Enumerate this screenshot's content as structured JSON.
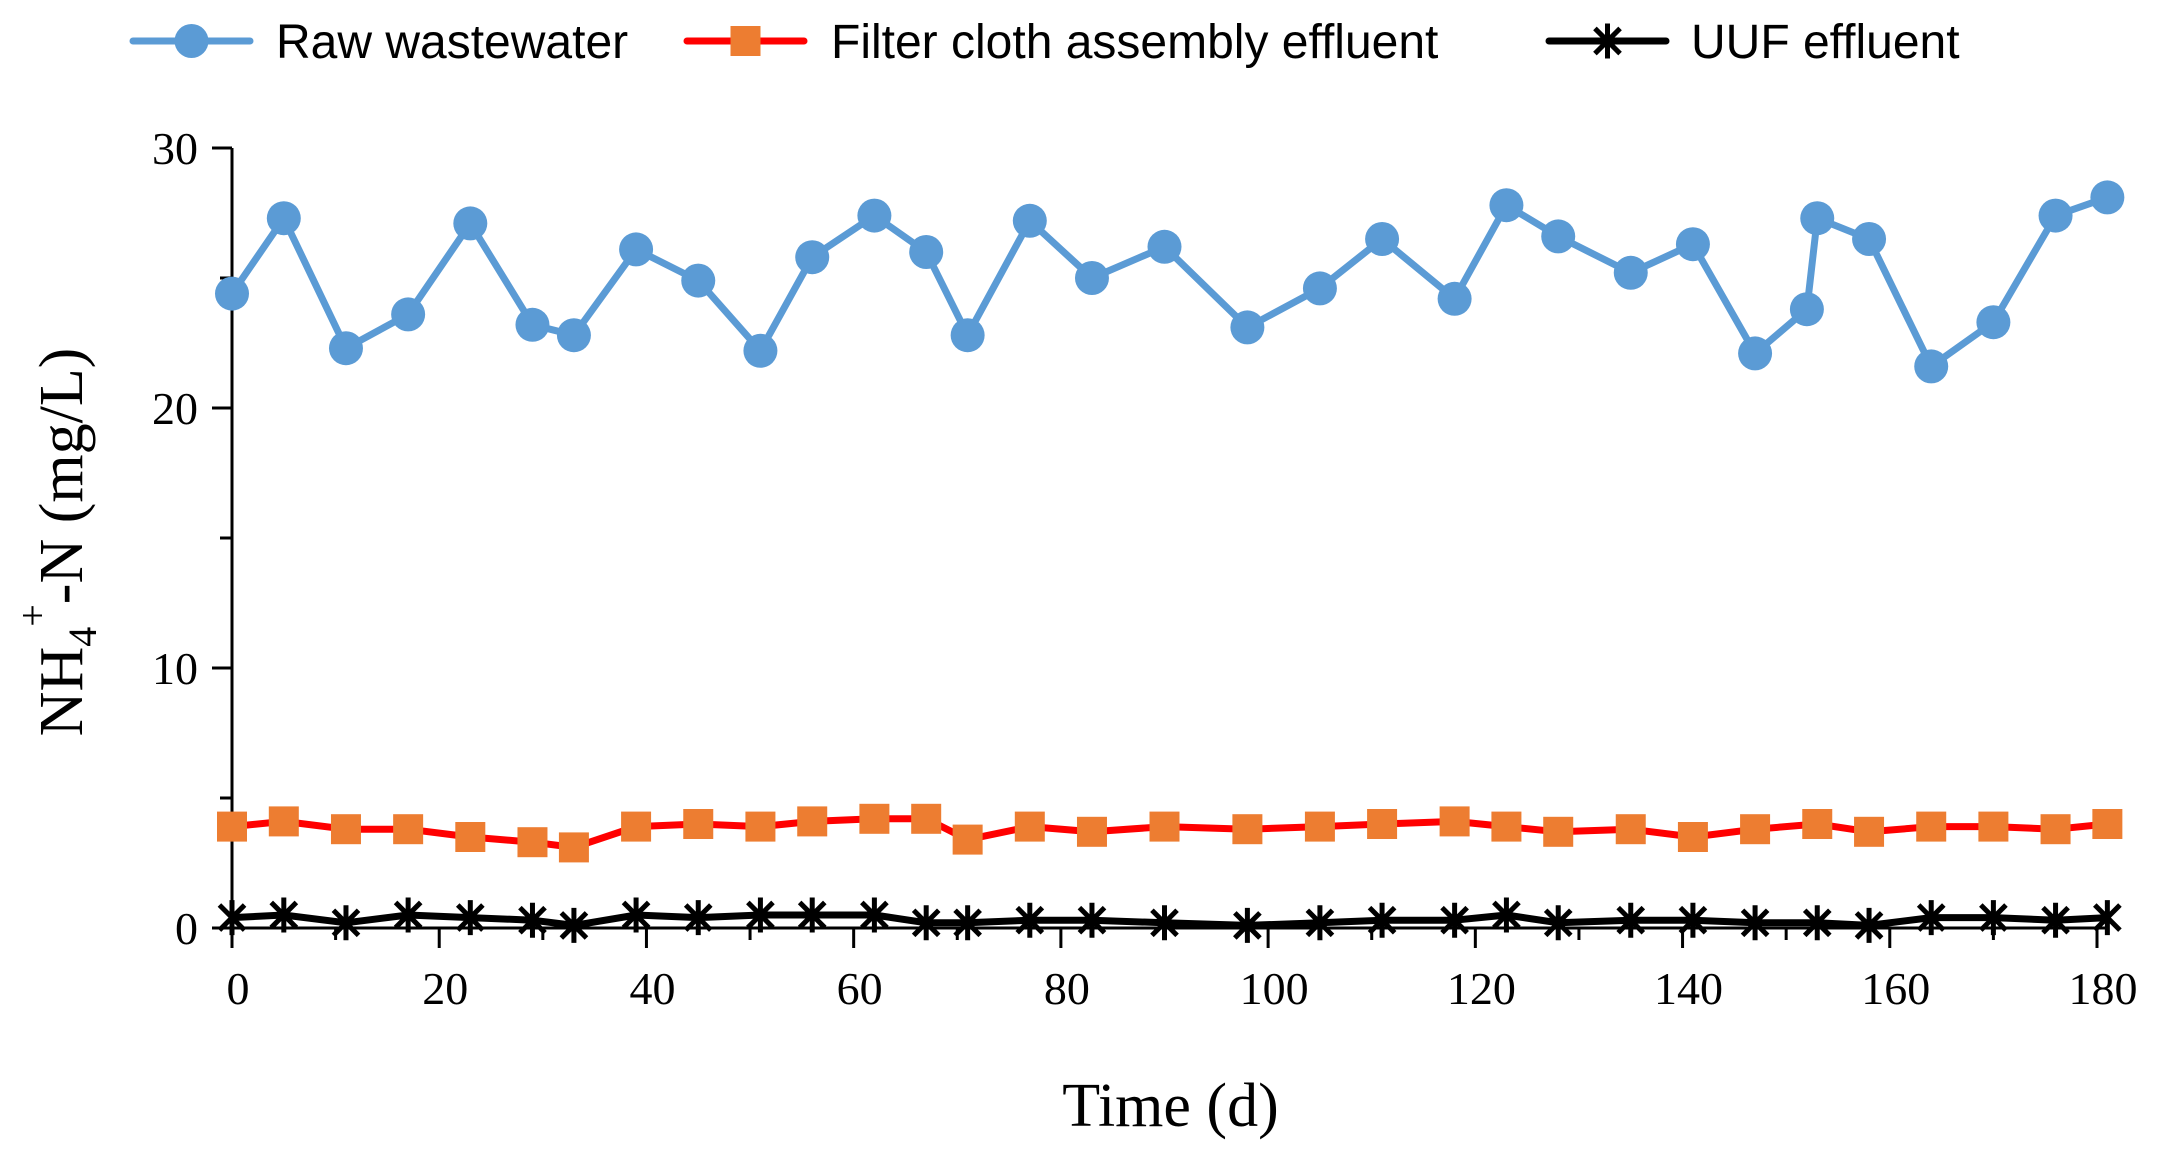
{
  "chart_data": {
    "type": "line",
    "title": "",
    "xlabel": "Time (d)",
    "ylabel_parts": {
      "main": "NH",
      "sub": "4",
      "sup": "+",
      "rest": "-N (mg/L)"
    },
    "xlim": [
      0,
      180
    ],
    "ylim": [
      0,
      30
    ],
    "xticks": [
      0,
      20,
      40,
      60,
      80,
      100,
      120,
      140,
      160,
      180
    ],
    "yticks": [
      0,
      10,
      20,
      30
    ],
    "grid": false,
    "legend_position": "top",
    "series": [
      {
        "name": "Raw wastewater",
        "color": "#5b9bd5",
        "marker": "circle",
        "x": [
          0,
          5,
          11,
          17,
          23,
          29,
          33,
          39,
          45,
          51,
          56,
          62,
          67,
          71,
          77,
          83,
          90,
          98,
          105,
          111,
          118,
          123,
          128,
          135,
          141,
          147,
          152,
          153,
          158,
          164,
          170,
          176,
          181
        ],
        "values": [
          24.4,
          27.3,
          22.3,
          23.6,
          27.1,
          23.2,
          22.8,
          26.1,
          24.9,
          22.2,
          25.8,
          27.4,
          26.0,
          22.8,
          27.2,
          25.0,
          26.2,
          23.1,
          24.6,
          26.5,
          24.2,
          27.8,
          26.6,
          25.2,
          26.3,
          22.1,
          23.8,
          27.3,
          26.5,
          21.6,
          23.3,
          27.4,
          28.1
        ]
      },
      {
        "name": "Filter cloth assembly effluent",
        "color": "#ff0000",
        "marker_color": "#ed7d31",
        "marker": "square",
        "x": [
          0,
          5,
          11,
          17,
          23,
          29,
          33,
          39,
          45,
          51,
          56,
          62,
          67,
          71,
          77,
          83,
          90,
          98,
          105,
          111,
          118,
          123,
          128,
          135,
          141,
          147,
          153,
          158,
          164,
          170,
          176,
          181
        ],
        "values": [
          3.9,
          4.1,
          3.8,
          3.8,
          3.5,
          3.3,
          3.1,
          3.9,
          4.0,
          3.9,
          4.1,
          4.2,
          4.2,
          3.4,
          3.9,
          3.7,
          3.9,
          3.8,
          3.9,
          4.0,
          4.1,
          3.9,
          3.7,
          3.8,
          3.5,
          3.8,
          4.0,
          3.7,
          3.9,
          3.9,
          3.8,
          4.0
        ]
      },
      {
        "name": "UUF effluent",
        "color": "#000000",
        "marker": "asterisk",
        "x": [
          0,
          5,
          11,
          17,
          23,
          29,
          33,
          39,
          45,
          51,
          56,
          62,
          67,
          71,
          77,
          83,
          90,
          98,
          105,
          111,
          118,
          123,
          128,
          135,
          141,
          147,
          153,
          158,
          164,
          170,
          176,
          181
        ],
        "values": [
          0.4,
          0.5,
          0.2,
          0.5,
          0.4,
          0.3,
          0.1,
          0.5,
          0.4,
          0.5,
          0.5,
          0.5,
          0.2,
          0.2,
          0.3,
          0.3,
          0.2,
          0.1,
          0.2,
          0.3,
          0.3,
          0.5,
          0.2,
          0.3,
          0.3,
          0.2,
          0.2,
          0.1,
          0.4,
          0.4,
          0.3,
          0.4
        ]
      }
    ]
  }
}
